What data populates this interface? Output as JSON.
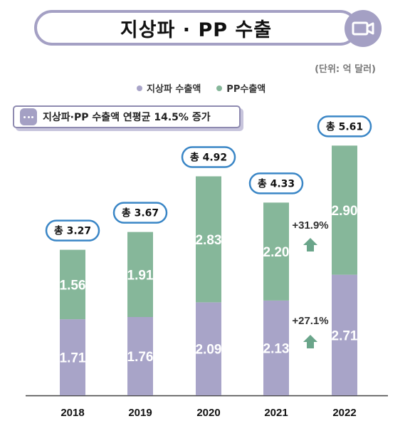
{
  "title": "지상파 · PP 수출",
  "unit": "(단위: 억 달러)",
  "legend": [
    {
      "label": "지상파 수출액",
      "color": "#a8a4c8"
    },
    {
      "label": "PP수출액",
      "color": "#86b79a"
    }
  ],
  "note": "지상파·PP 수출액 연평균 14.5% 증가",
  "icons": {
    "title": "video-camera-icon",
    "note": "speech-bubble-icon",
    "growth": "up-arrow-icon"
  },
  "chart_data": {
    "type": "bar",
    "stacked": true,
    "categories": [
      "2018",
      "2019",
      "2020",
      "2021",
      "2022"
    ],
    "series": [
      {
        "name": "지상파 수출액",
        "values": [
          1.71,
          1.76,
          2.09,
          2.13,
          2.71
        ],
        "labels": [
          "1.71",
          "1.76",
          "2.09",
          "2.13",
          "2.71"
        ],
        "color": "#a8a4c8"
      },
      {
        "name": "PP수출액",
        "values": [
          1.56,
          1.91,
          2.83,
          2.2,
          2.9
        ],
        "labels": [
          "1.56",
          "1.91",
          "2.83",
          "2.20",
          "2.90"
        ],
        "color": "#86b79a"
      }
    ],
    "totals": [
      "총 3.27",
      "총 3.67",
      "총 4.92",
      "총 4.33",
      "총 5.61"
    ],
    "growth": [
      {
        "series": "PP수출액",
        "label": "+31.9%"
      },
      {
        "series": "지상파 수출액",
        "label": "+27.1%"
      }
    ],
    "ylim": [
      0,
      6
    ]
  }
}
